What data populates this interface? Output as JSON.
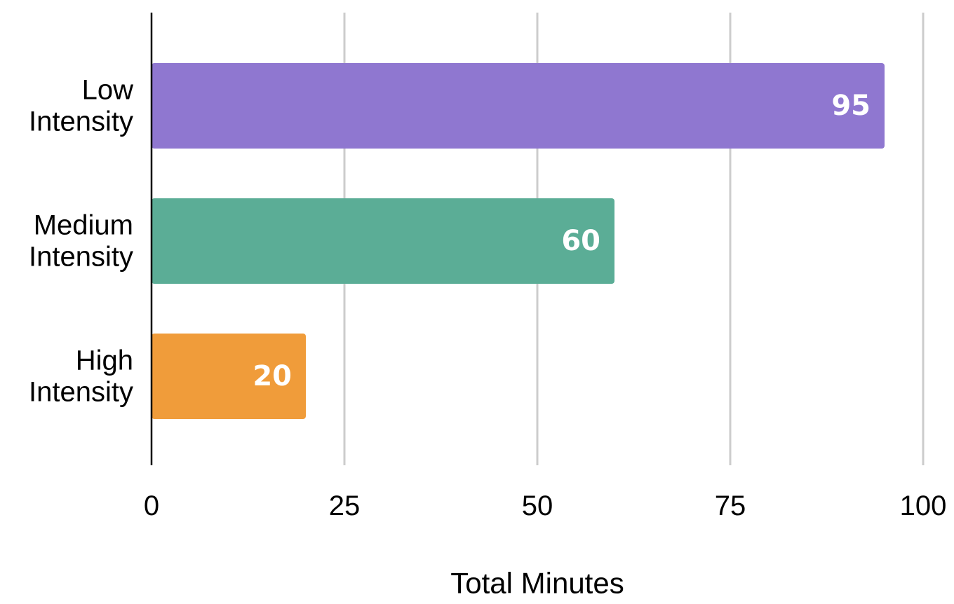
{
  "chart_data": {
    "type": "bar",
    "orientation": "horizontal",
    "categories": [
      [
        "Low",
        "Intensity"
      ],
      [
        "Medium",
        "Intensity"
      ],
      [
        "High",
        "Intensity"
      ]
    ],
    "values": [
      95,
      60,
      20
    ],
    "data_labels": [
      "95",
      "60",
      "20"
    ],
    "colors": [
      "#8f77d0",
      "#5bad96",
      "#f09c3a"
    ],
    "xlabel": "Total Minutes",
    "xlim": [
      0,
      100
    ],
    "xticks": [
      0,
      25,
      50,
      75,
      100
    ],
    "xtick_labels": [
      "0",
      "25",
      "50",
      "75",
      "100"
    ],
    "grid": "vertical",
    "legend": "none"
  }
}
